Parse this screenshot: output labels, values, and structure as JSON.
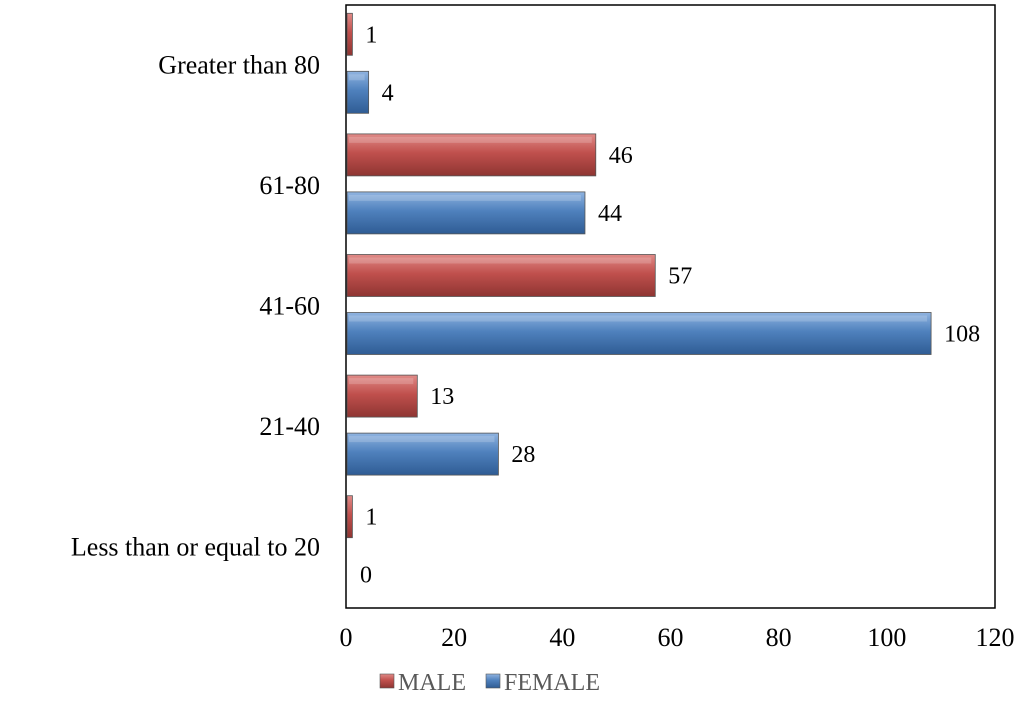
{
  "chart_data": {
    "type": "bar",
    "orientation": "horizontal",
    "categories": [
      "Less than or equal to 20",
      "21-40",
      "41-60",
      "61-80",
      "Greater than 80"
    ],
    "series": [
      {
        "name": "MALE",
        "values": [
          1,
          13,
          57,
          46,
          1
        ],
        "color": "#c0504d"
      },
      {
        "name": "FEMALE",
        "values": [
          0,
          28,
          108,
          44,
          4
        ],
        "color": "#4f81bd"
      }
    ],
    "xlim": [
      0,
      120
    ],
    "xticks": [
      0,
      20,
      40,
      60,
      80,
      100,
      120
    ],
    "grid": false,
    "legend_position": "bottom",
    "data_labels": true
  }
}
